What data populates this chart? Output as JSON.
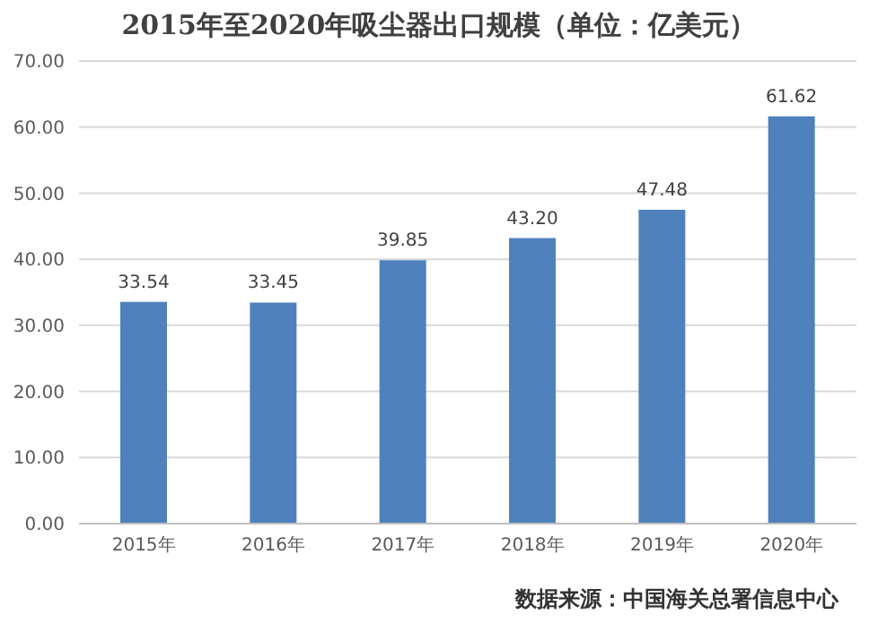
{
  "chart_data": {
    "type": "bar",
    "title": "2015年至2020年吸尘器出口规模（单位：亿美元）",
    "categories": [
      "2015年",
      "2016年",
      "2017年",
      "2018年",
      "2019年",
      "2020年"
    ],
    "values": [
      33.54,
      33.45,
      39.85,
      43.2,
      47.48,
      61.62
    ],
    "value_labels": [
      "33.54",
      "33.45",
      "39.85",
      "43.20",
      "47.48",
      "61.62"
    ],
    "color": "#4f81bd",
    "ylim": [
      0,
      70
    ],
    "yticks": [
      {
        "value": 0,
        "label": "0.00"
      },
      {
        "value": 10,
        "label": "10.00"
      },
      {
        "value": 20,
        "label": "20.00"
      },
      {
        "value": 30,
        "label": "30.00"
      },
      {
        "value": 40,
        "label": "40.00"
      },
      {
        "value": 50,
        "label": "50.00"
      },
      {
        "value": 60,
        "label": "60.00"
      },
      {
        "value": 70,
        "label": "70.00"
      }
    ],
    "grid": "y",
    "annotations": [
      "数据来源：中国海关总署信息中心"
    ]
  }
}
